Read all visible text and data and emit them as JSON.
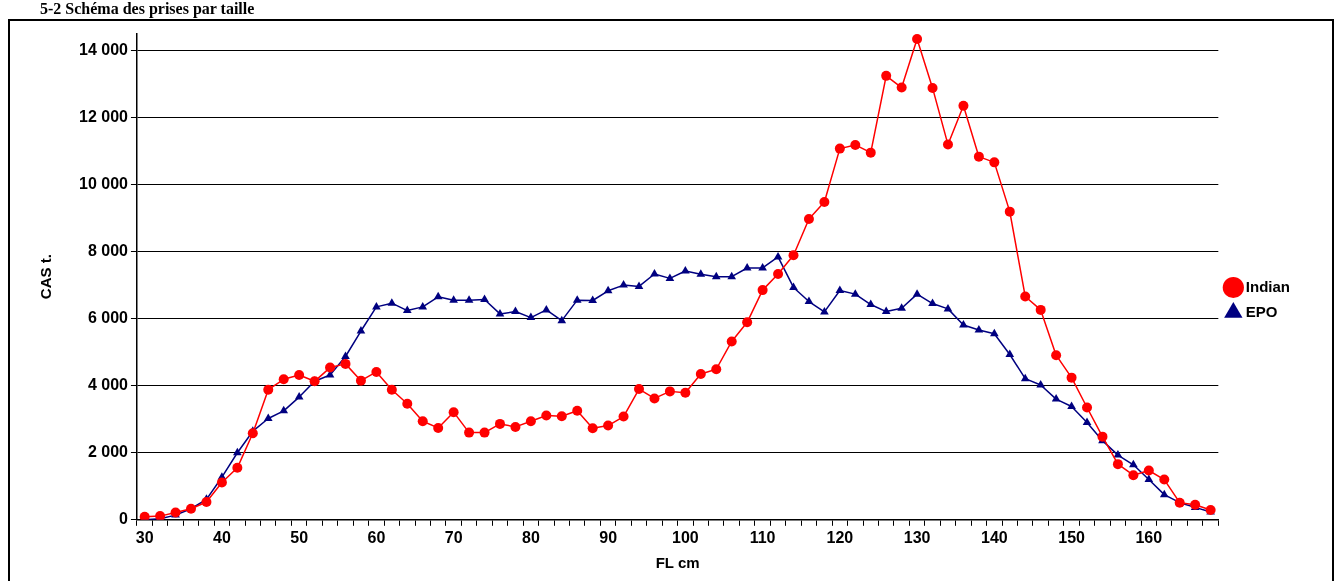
{
  "chart_data": {
    "type": "line",
    "title": "5-2  Schéma des prises par taille",
    "xlabel": "FL cm",
    "ylabel": "CAS t.",
    "categories": [
      "30",
      null,
      null,
      null,
      null,
      "40",
      null,
      null,
      null,
      null,
      "50",
      null,
      null,
      null,
      null,
      "60",
      null,
      null,
      null,
      null,
      "70",
      null,
      null,
      null,
      null,
      "80",
      null,
      null,
      null,
      null,
      "90",
      null,
      null,
      null,
      null,
      "100",
      null,
      null,
      null,
      null,
      "110",
      null,
      null,
      null,
      null,
      "120",
      null,
      null,
      null,
      null,
      "130",
      null,
      null,
      null,
      null,
      "140",
      null,
      null,
      null,
      null,
      "150",
      null,
      null,
      null,
      null,
      "160",
      null,
      null,
      null,
      null
    ],
    "series": [
      {
        "name": "Indian",
        "color": "#ff0000",
        "marker": "circle",
        "values": [
          90,
          110,
          220,
          330,
          530,
          1110,
          1550,
          2580,
          3880,
          4190,
          4320,
          4130,
          4540,
          4650,
          4150,
          4410,
          3880,
          3460,
          2940,
          2740,
          3210,
          2600,
          2600,
          2860,
          2770,
          2940,
          3110,
          3090,
          3250,
          2730,
          2810,
          3080,
          3900,
          3620,
          3830,
          3790,
          4350,
          4490,
          5320,
          5890,
          6850,
          7330,
          7890,
          8970,
          9480,
          11070,
          11180,
          10950,
          13240,
          12890,
          14340,
          12880,
          11190,
          12350,
          10830,
          10660,
          9190,
          6660,
          6260,
          4910,
          4240,
          3350,
          2480,
          1660,
          1330,
          1470,
          1200,
          510,
          450,
          290
        ]
      },
      {
        "name": "EPO",
        "color": "#000080",
        "marker": "triangle",
        "values": [
          0,
          30,
          140,
          330,
          610,
          1270,
          2000,
          2640,
          3020,
          3250,
          3660,
          4130,
          4320,
          4870,
          5630,
          6350,
          6460,
          6240,
          6350,
          6650,
          6550,
          6550,
          6570,
          6140,
          6210,
          6030,
          6260,
          5940,
          6550,
          6540,
          6830,
          7000,
          6960,
          7330,
          7200,
          7420,
          7320,
          7250,
          7250,
          7510,
          7510,
          7840,
          6930,
          6510,
          6200,
          6840,
          6730,
          6420,
          6210,
          6310,
          6730,
          6450,
          6290,
          5810,
          5660,
          5550,
          4930,
          4210,
          4020,
          3600,
          3380,
          2900,
          2360,
          1930,
          1640,
          1200,
          750,
          510,
          370,
          230
        ]
      }
    ],
    "ylim": [
      0,
      14500
    ],
    "yticks": [
      0,
      {
        "value": 2000,
        "label": "2 000"
      },
      {
        "value": 4000,
        "label": "4 000"
      },
      {
        "value": 6000,
        "label": "6 000"
      },
      {
        "value": 8000,
        "label": "8 000"
      },
      {
        "value": 10000,
        "label": "10 000"
      },
      {
        "value": 12000,
        "label": "12 000"
      },
      {
        "value": 14000,
        "label": "14 000"
      }
    ],
    "grid": "y",
    "legend": "right",
    "line_style": "solid"
  }
}
